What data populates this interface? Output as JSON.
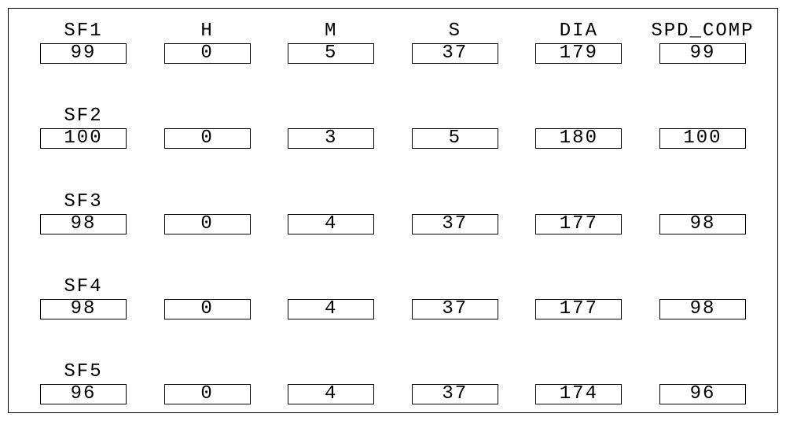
{
  "columns": [
    "SF1",
    "H",
    "M",
    "S",
    "DIA",
    "SPD_COMP"
  ],
  "row_labels": [
    "SF1",
    "SF2",
    "SF3",
    "SF4",
    "SF5"
  ],
  "rows": [
    {
      "sf": "99",
      "h": "0",
      "m": "5",
      "s": "37",
      "dia": "179",
      "spd": "99"
    },
    {
      "sf": "100",
      "h": "0",
      "m": "3",
      "s": "5",
      "dia": "180",
      "spd": "100"
    },
    {
      "sf": "98",
      "h": "0",
      "m": "4",
      "s": "37",
      "dia": "177",
      "spd": "98"
    },
    {
      "sf": "98",
      "h": "0",
      "m": "4",
      "s": "37",
      "dia": "177",
      "spd": "98"
    },
    {
      "sf": "96",
      "h": "0",
      "m": "4",
      "s": "37",
      "dia": "174",
      "spd": "96"
    }
  ]
}
